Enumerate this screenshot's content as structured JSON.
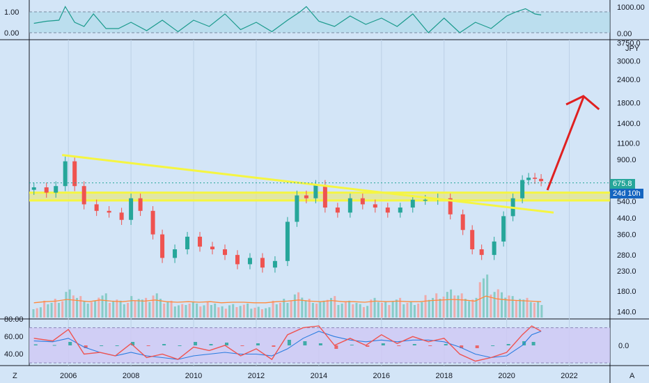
{
  "chart_data": [
    {
      "type": "line",
      "panel": "top-oscillator",
      "yticks_left": [
        "1.00",
        "0.00"
      ],
      "yticks_right": [
        "1000.00",
        "0.00"
      ],
      "x": [
        2004.9,
        2005.3,
        2005.7,
        2005.9,
        2006.2,
        2006.5,
        2006.8,
        2007.2,
        2007.6,
        2008.0,
        2008.5,
        2009.0,
        2009.5,
        2010.0,
        2010.5,
        2011.0,
        2011.5,
        2012.0,
        2012.5,
        2013.0,
        2013.4,
        2013.6,
        2014.0,
        2014.5,
        2015.0,
        2015.5,
        2016.0,
        2016.5,
        2017.0,
        2017.5,
        2018.0,
        2018.5,
        2019.0,
        2019.5,
        2020.0,
        2020.3,
        2020.6,
        2020.9,
        2021.1
      ],
      "values": [
        0.45,
        0.55,
        0.6,
        1.25,
        0.5,
        0.3,
        0.9,
        0.2,
        0.2,
        0.5,
        0.1,
        0.6,
        0.05,
        0.6,
        0.3,
        0.9,
        0.15,
        0.5,
        0.05,
        0.6,
        1.0,
        1.25,
        0.55,
        0.3,
        0.8,
        0.4,
        0.7,
        0.3,
        0.9,
        0.0,
        0.7,
        0.0,
        0.5,
        0.2,
        0.8,
        1.0,
        1.15,
        0.9,
        0.85
      ]
    },
    {
      "type": "candlestick",
      "panel": "price",
      "currency": "JPY",
      "yscale": "log",
      "yticks": [
        "3750.0",
        "3000.0",
        "2400.0",
        "1800.0",
        "1400.0",
        "1100.0",
        "900.0",
        "540.0",
        "440.0",
        "360.0",
        "280.0",
        "230.0",
        "180.0",
        "140.0"
      ],
      "xticks": [
        "2006",
        "2008",
        "2010",
        "2012",
        "2014",
        "2016",
        "2018",
        "2020",
        "2022"
      ],
      "x": [
        2004.9,
        2005.3,
        2005.6,
        2005.9,
        2006.2,
        2006.5,
        2006.9,
        2007.3,
        2007.7,
        2008.0,
        2008.3,
        2008.7,
        2009.0,
        2009.4,
        2009.8,
        2010.2,
        2010.6,
        2011.0,
        2011.4,
        2011.8,
        2012.2,
        2012.6,
        2013.0,
        2013.3,
        2013.6,
        2013.9,
        2014.2,
        2014.6,
        2015.0,
        2015.4,
        2015.8,
        2016.2,
        2016.6,
        2017.0,
        2017.4,
        2017.8,
        2018.2,
        2018.6,
        2018.9,
        2019.2,
        2019.6,
        2019.9,
        2020.2,
        2020.5,
        2020.7,
        2020.9,
        2021.1
      ],
      "close": [
        640,
        600,
        650,
        880,
        650,
        520,
        480,
        470,
        430,
        560,
        480,
        360,
        270,
        300,
        350,
        310,
        300,
        280,
        250,
        270,
        240,
        260,
        420,
        580,
        560,
        660,
        500,
        470,
        560,
        520,
        500,
        470,
        500,
        550,
        550,
        560,
        460,
        380,
        300,
        280,
        330,
        450,
        560,
        700,
        720,
        710,
        690
      ],
      "last_price_label": "675.8",
      "countdown_label": "24d 10h",
      "annotations": [
        "descending yellow trendline",
        "horizontal yellow support/resistance band",
        "red upward arrow"
      ]
    },
    {
      "type": "bar",
      "panel": "volume",
      "values": [
        0.4,
        0.6,
        0.7,
        1.0,
        0.8,
        0.6,
        0.9,
        0.7,
        0.6,
        0.8,
        0.7,
        0.9,
        0.6,
        0.5,
        0.6,
        0.5,
        0.6,
        0.4,
        0.5,
        0.5,
        0.4,
        0.4,
        0.6,
        0.7,
        0.9,
        0.7,
        0.6,
        0.8,
        0.6,
        0.6,
        0.5,
        0.7,
        0.6,
        0.7,
        0.6,
        0.6,
        0.8,
        0.9,
        1.0,
        0.9,
        0.7,
        1.6,
        1.1,
        0.9,
        0.8,
        0.7,
        0.6
      ]
    },
    {
      "type": "line",
      "panel": "macd-rsi",
      "yticks_left": [
        "80.00",
        "60.00",
        "40.00"
      ],
      "yticks_right": [
        "0.0"
      ],
      "x": [
        2004.9,
        2005.5,
        2006.0,
        2006.5,
        2007.0,
        2007.5,
        2008.0,
        2008.5,
        2009.0,
        2009.5,
        2010.0,
        2010.5,
        2011.0,
        2011.5,
        2012.0,
        2012.5,
        2013.0,
        2013.5,
        2014.0,
        2014.5,
        2015.0,
        2015.5,
        2016.0,
        2016.5,
        2017.0,
        2017.5,
        2018.0,
        2018.5,
        2019.0,
        2019.5,
        2020.0,
        2020.5,
        2020.8,
        2021.1
      ],
      "rsi": [
        58,
        55,
        68,
        40,
        42,
        38,
        52,
        36,
        40,
        34,
        48,
        44,
        50,
        38,
        46,
        34,
        62,
        70,
        72,
        50,
        58,
        50,
        62,
        52,
        60,
        54,
        58,
        40,
        32,
        36,
        42,
        62,
        72,
        66
      ],
      "signal": [
        55,
        54,
        58,
        48,
        42,
        38,
        42,
        38,
        36,
        34,
        38,
        40,
        42,
        40,
        40,
        38,
        46,
        58,
        66,
        60,
        56,
        54,
        56,
        54,
        56,
        56,
        54,
        48,
        40,
        36,
        38,
        50,
        62,
        66
      ]
    }
  ],
  "ui": {
    "corner_left": "Z",
    "corner_right": "A"
  },
  "colors": {
    "background": "#d3e5f7",
    "up": "#26a69a",
    "down": "#ef5350",
    "trendline": "#f5f542",
    "arrow": "#e02020",
    "osc_line": "#1a9a8c",
    "signal": "#ff8a3c",
    "last_price_tag": "#26a69a",
    "countdown_tag": "#1565c0"
  }
}
